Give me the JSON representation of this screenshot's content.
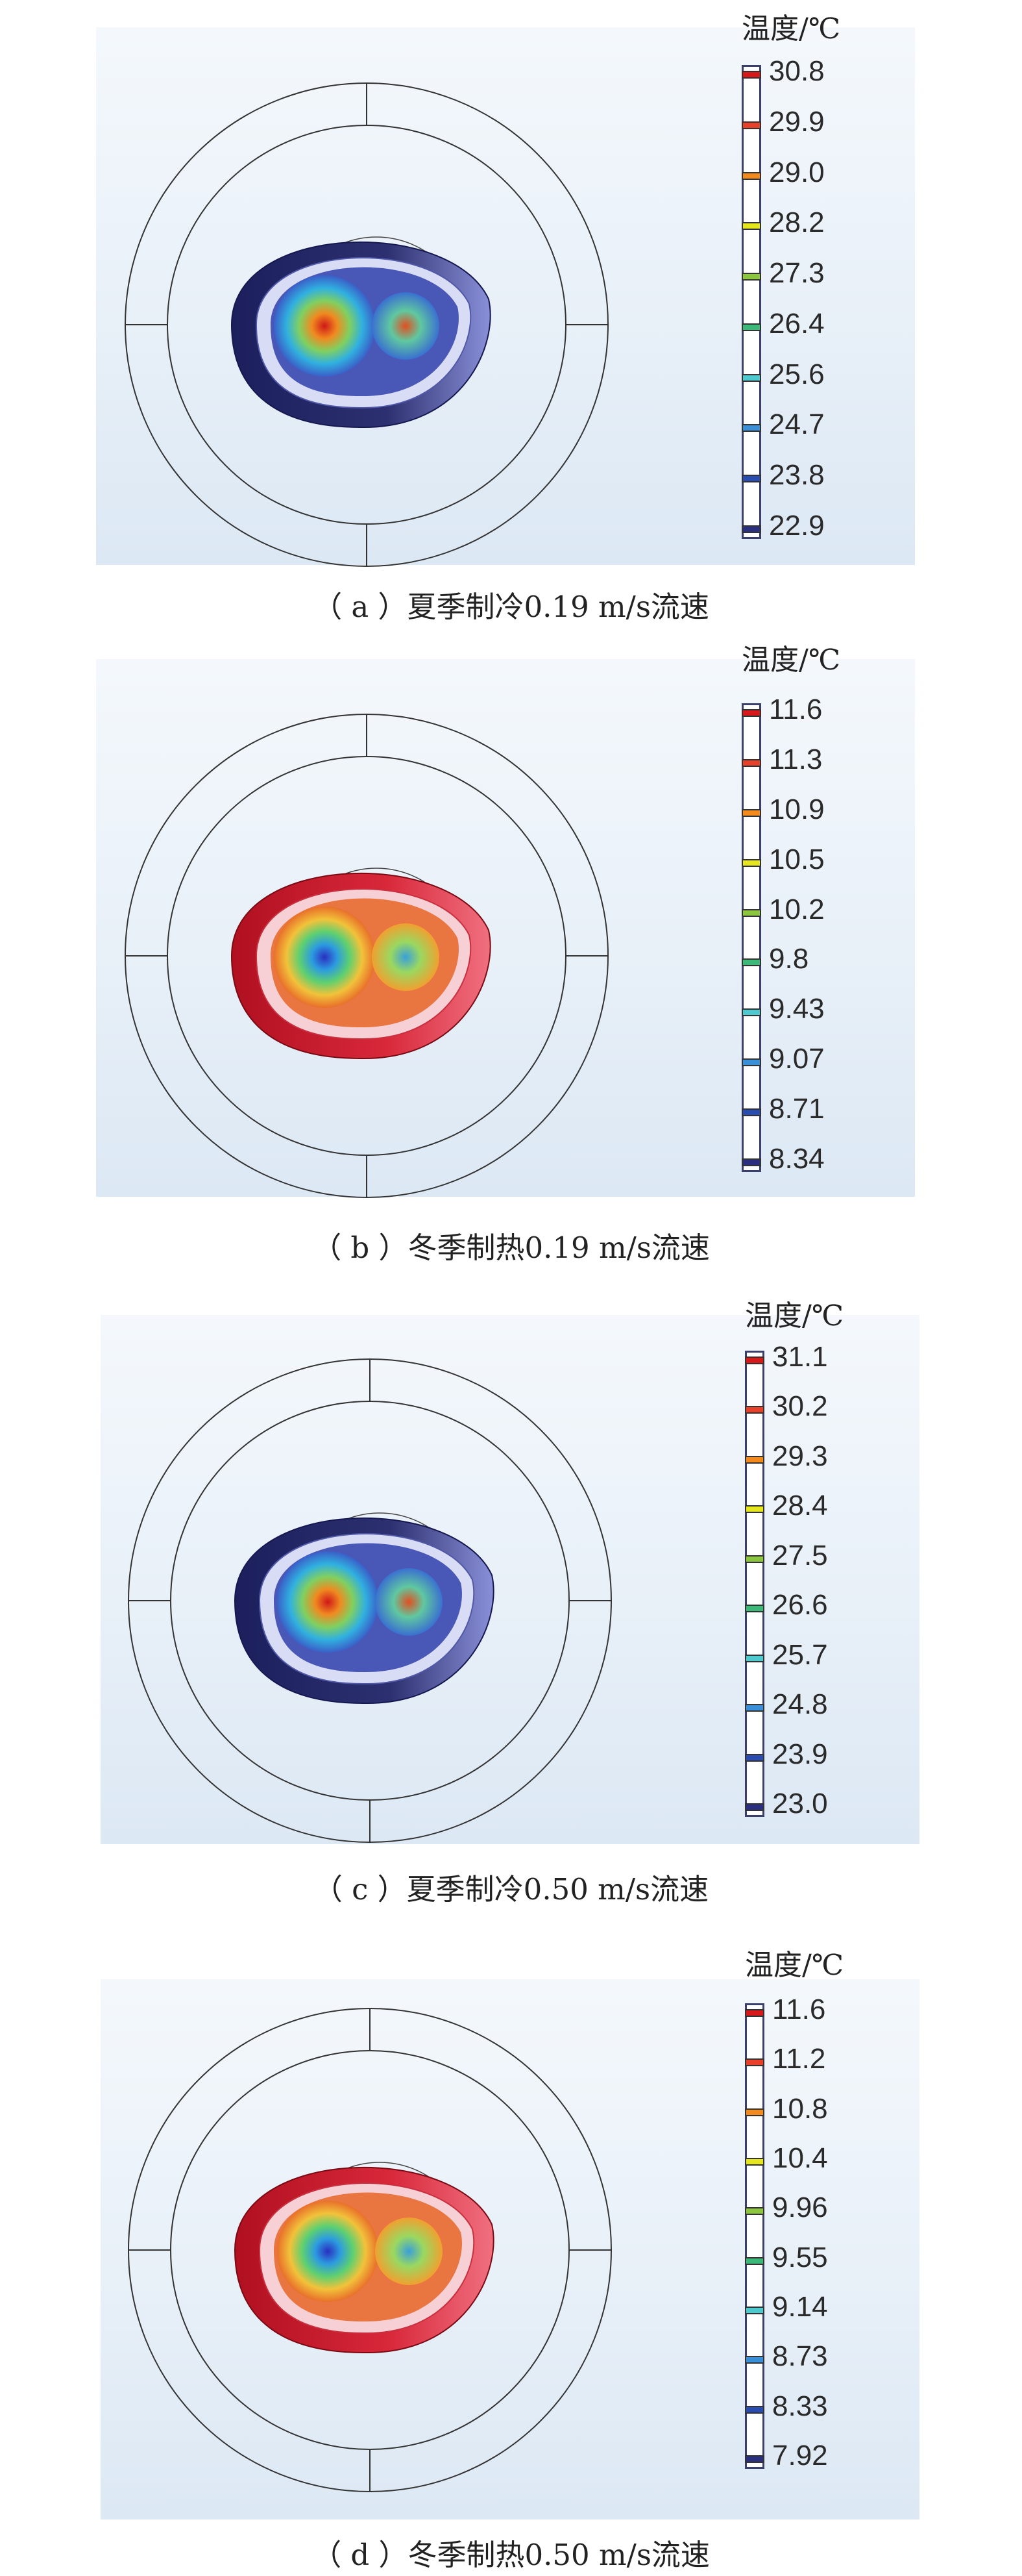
{
  "figure": {
    "panels": [
      {
        "id": "a",
        "caption": "（ a ）夏季制冷0.19 m/s流速",
        "colorbar_title": "温度/℃",
        "colorbar_ticks": [
          "30.8",
          "29.9",
          "29.0",
          "28.2",
          "27.3",
          "26.4",
          "25.6",
          "24.7",
          "23.8",
          "22.9"
        ],
        "mode": "cooling"
      },
      {
        "id": "b",
        "caption": "（ b ）冬季制热0.19 m/s流速",
        "colorbar_title": "温度/℃",
        "colorbar_ticks": [
          "11.6",
          "11.3",
          "10.9",
          "10.5",
          "10.2",
          "9.8",
          "9.43",
          "9.07",
          "8.71",
          "8.34"
        ],
        "mode": "heating"
      },
      {
        "id": "c",
        "caption": "（ c ）夏季制冷0.50 m/s流速",
        "colorbar_title": "温度/℃",
        "colorbar_ticks": [
          "31.1",
          "30.2",
          "29.3",
          "28.4",
          "27.5",
          "26.6",
          "25.7",
          "24.8",
          "23.9",
          "23.0"
        ],
        "mode": "cooling"
      },
      {
        "id": "d",
        "caption": "（ d ）冬季制热0.50 m/s流速",
        "colorbar_title": "温度/℃",
        "colorbar_ticks": [
          "11.6",
          "11.2",
          "10.8",
          "10.4",
          "9.96",
          "9.55",
          "9.14",
          "8.73",
          "8.33",
          "7.92"
        ],
        "mode": "heating"
      }
    ],
    "tick_colors": [
      "#d7191c",
      "#e8402a",
      "#f28a1e",
      "#e6e61e",
      "#8cc63e",
      "#3cb878",
      "#4ec9d0",
      "#3a8fd9",
      "#2a4cb0",
      "#2b2f80"
    ]
  }
}
